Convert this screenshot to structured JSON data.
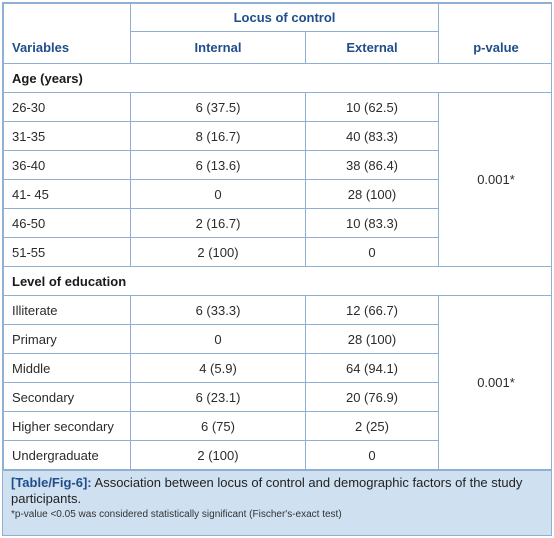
{
  "table": {
    "header_group": "Locus of control",
    "col_variables": "Variables",
    "col_internal": "Internal",
    "col_external": "External",
    "col_pvalue": "p-value",
    "sections": [
      {
        "title": "Age (years)",
        "p_value": "0.001*",
        "rows": [
          {
            "variable": "26-30",
            "internal": "6 (37.5)",
            "external": "10 (62.5)"
          },
          {
            "variable": "31-35",
            "internal": "8 (16.7)",
            "external": "40 (83.3)"
          },
          {
            "variable": "36-40",
            "internal": "6 (13.6)",
            "external": "38 (86.4)"
          },
          {
            "variable": "41- 45",
            "internal": "0",
            "external": "28 (100)"
          },
          {
            "variable": "46-50",
            "internal": "2 (16.7)",
            "external": "10 (83.3)"
          },
          {
            "variable": "51-55",
            "internal": "2 (100)",
            "external": "0"
          }
        ]
      },
      {
        "title": "Level of education",
        "p_value": "0.001*",
        "rows": [
          {
            "variable": "Illiterate",
            "internal": "6 (33.3)",
            "external": "12 (66.7)"
          },
          {
            "variable": "Primary",
            "internal": "0",
            "external": "28 (100)"
          },
          {
            "variable": "Middle",
            "internal": "4 (5.9)",
            "external": "64 (94.1)"
          },
          {
            "variable": "Secondary",
            "internal": "6 (23.1)",
            "external": "20 (76.9)"
          },
          {
            "variable": "Higher secondary",
            "internal": "6 (75)",
            "external": "2 (25)"
          },
          {
            "variable": "Undergraduate",
            "internal": "2 (100)",
            "external": "0"
          }
        ]
      }
    ]
  },
  "caption": {
    "label": "[Table/Fig-6]:",
    "text": " Association between locus of control and demographic factors of the study participants.",
    "note": "*p-value <0.05 was considered statistically significant (Fischer's-exact test)"
  }
}
